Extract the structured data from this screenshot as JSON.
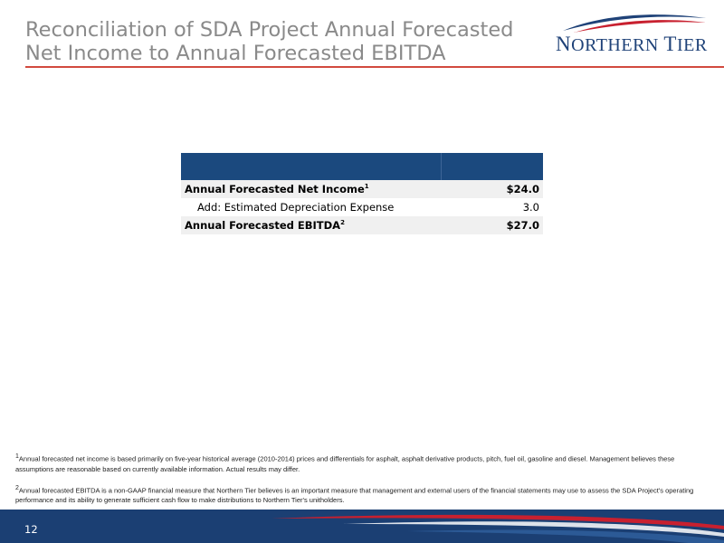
{
  "header": {
    "title_line1": "Reconciliation of SDA Project Annual Forecasted",
    "title_line2": "Net Income to Annual Forecasted EBITDA"
  },
  "logo": {
    "text_first_initial": "N",
    "text_first_rest": "ORTHERN",
    "text_second_initial": "T",
    "text_second_rest": "IER"
  },
  "table": {
    "rows": [
      {
        "label": "Annual Forecasted Net Income",
        "sup": "1",
        "value": "$24.0"
      },
      {
        "label": "Add: Estimated Depreciation Expense",
        "sup": "",
        "value": "3.0"
      },
      {
        "label": "Annual Forecasted EBITDA",
        "sup": "2",
        "value": "$27.0"
      }
    ]
  },
  "footnotes": {
    "n1_mark": "1",
    "n1_text": "Annual forecasted net income is based primarily on five-year historical average (2010-2014) prices and differentials for asphalt, asphalt derivative products, pitch, fuel oil, gasoline and diesel.  Management believes these assumptions are reasonable based on currently available information.  Actual results may differ.",
    "n2_mark": "2",
    "n2_text": "Annual forecasted EBITDA is a non-GAAP financial measure that Northern Tier believes is an important measure that management and external users of the financial statements may use to assess the SDA Project's operating performance and its ability to generate sufficient cash flow to make distributions to Northern Tier's unitholders."
  },
  "footer": {
    "page_number": "12"
  },
  "colors": {
    "navy": "#1b3f73",
    "table_header": "#1b497e",
    "accent_red": "#d24a3e",
    "title_gray": "#8a8a8a"
  }
}
